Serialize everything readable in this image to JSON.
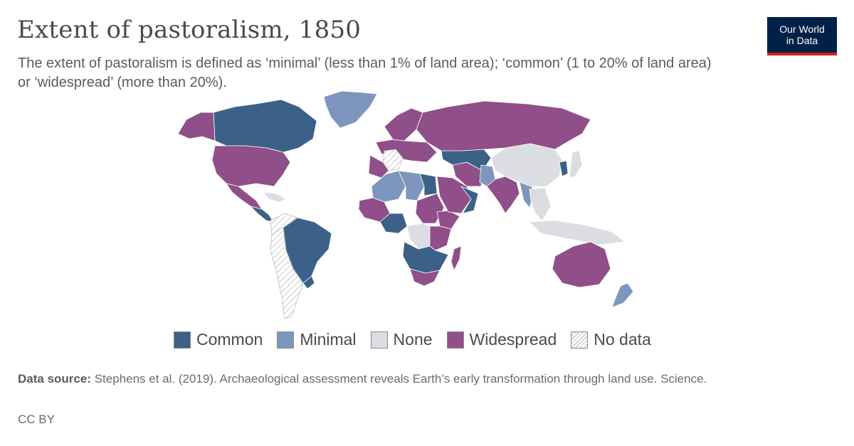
{
  "header": {
    "title": "Extent of pastoralism, 1850",
    "subtitle": "The extent of pastoralism is defined as ‘minimal’ (less than 1% of land area); ‘common’ (1 to 20% of land area) or ‘widespread’ (more than 20%)."
  },
  "logo": {
    "line1": "Our World",
    "line2": "in Data"
  },
  "colors": {
    "common": "#3b6188",
    "minimal": "#7e96bd",
    "none": "#dcdde3",
    "widespread": "#904f88",
    "nodata": "#ffffff",
    "border": "#ffffff"
  },
  "legend": [
    {
      "key": "common",
      "label": "Common"
    },
    {
      "key": "minimal",
      "label": "Minimal"
    },
    {
      "key": "none",
      "label": "None"
    },
    {
      "key": "widespread",
      "label": "Widespread"
    },
    {
      "key": "nodata",
      "label": "No data"
    }
  ],
  "regions": [
    {
      "name": "Canada",
      "category": "common"
    },
    {
      "name": "Alaska",
      "category": "widespread"
    },
    {
      "name": "United States",
      "category": "widespread"
    },
    {
      "name": "Greenland",
      "category": "minimal"
    },
    {
      "name": "Mexico",
      "category": "widespread"
    },
    {
      "name": "Central America",
      "category": "common"
    },
    {
      "name": "Caribbean",
      "category": "none"
    },
    {
      "name": "Brazil",
      "category": "common"
    },
    {
      "name": "Northern South America",
      "category": "nodata"
    },
    {
      "name": "Southern South America",
      "category": "nodata"
    },
    {
      "name": "Uruguay",
      "category": "common"
    },
    {
      "name": "Europe",
      "category": "widespread"
    },
    {
      "name": "Spain",
      "category": "widespread"
    },
    {
      "name": "Scandinavia",
      "category": "widespread"
    },
    {
      "name": "France",
      "category": "nodata"
    },
    {
      "name": "Russia",
      "category": "widespread"
    },
    {
      "name": "Algeria",
      "category": "minimal"
    },
    {
      "name": "Libya",
      "category": "minimal"
    },
    {
      "name": "Egypt",
      "category": "common"
    },
    {
      "name": "West Africa",
      "category": "widespread"
    },
    {
      "name": "Sudan",
      "category": "widespread"
    },
    {
      "name": "Ethiopia",
      "category": "widespread"
    },
    {
      "name": "Nigeria",
      "category": "common"
    },
    {
      "name": "Congo",
      "category": "none"
    },
    {
      "name": "East Africa",
      "category": "widespread"
    },
    {
      "name": "Southern Africa",
      "category": "common"
    },
    {
      "name": "South Africa",
      "category": "widespread"
    },
    {
      "name": "Madagascar",
      "category": "widespread"
    },
    {
      "name": "Arabia",
      "category": "widespread"
    },
    {
      "name": "Oman",
      "category": "common"
    },
    {
      "name": "Iran",
      "category": "widespread"
    },
    {
      "name": "Central Asia",
      "category": "common"
    },
    {
      "name": "Pakistan",
      "category": "minimal"
    },
    {
      "name": "India",
      "category": "widespread"
    },
    {
      "name": "Burma",
      "category": "minimal"
    },
    {
      "name": "China",
      "category": "none"
    },
    {
      "name": "Korea",
      "category": "common"
    },
    {
      "name": "Japan",
      "category": "none"
    },
    {
      "name": "Southeast Asia",
      "category": "none"
    },
    {
      "name": "Indonesia",
      "category": "none"
    },
    {
      "name": "Australia",
      "category": "widespread"
    },
    {
      "name": "New Zealand",
      "category": "minimal"
    }
  ],
  "footer": {
    "source_label": "Data source:",
    "source_text": "Stephens et al. (2019). Archaeological assessment reveals Earth’s early transformation through land use. Science.",
    "license": "CC BY"
  }
}
